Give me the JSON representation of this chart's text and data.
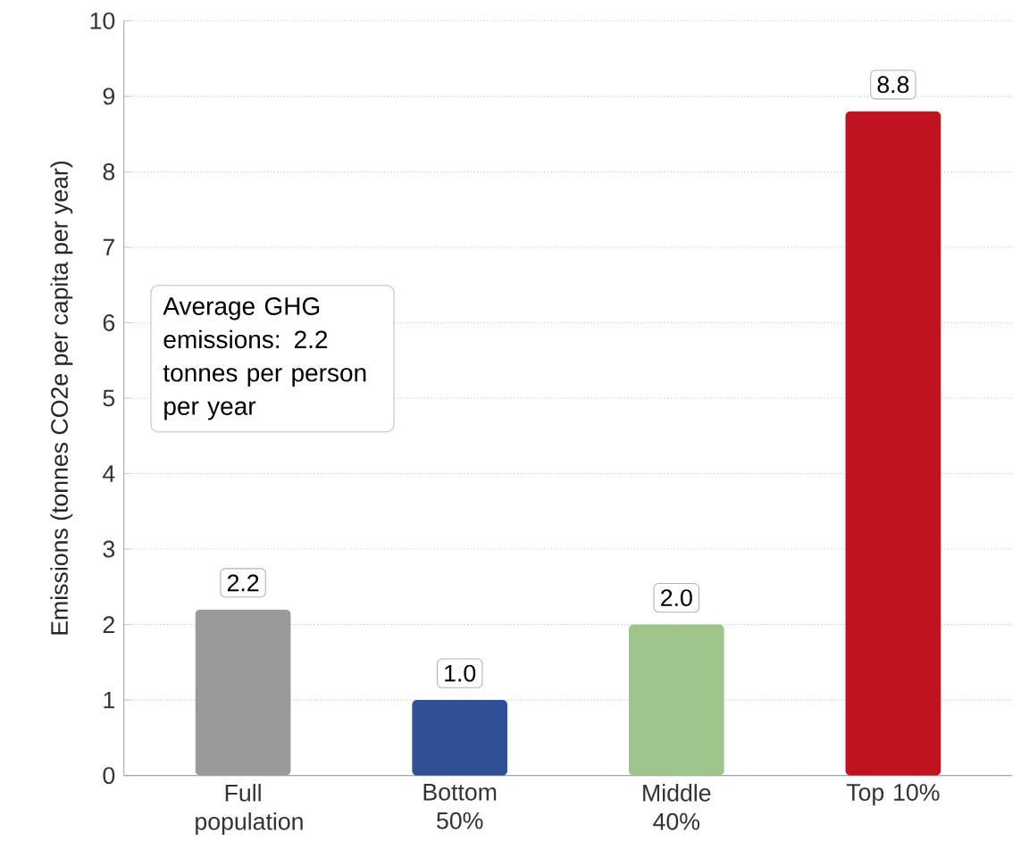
{
  "chart_data": {
    "type": "bar",
    "ylabel": "Emissions (tonnes CO2e per capita per year)",
    "categories": [
      "Full population",
      "Bottom 50%",
      "Middle 40%",
      "Top 10%"
    ],
    "values": [
      2.2,
      1.0,
      2.0,
      8.8
    ],
    "value_labels": [
      "2.2",
      "1.0",
      "2.0",
      "8.8"
    ],
    "colors": [
      "#9a9a9a",
      "#2f4f96",
      "#9fc48c",
      "#c1121f"
    ],
    "ylim": [
      0,
      10
    ],
    "yticks": [
      0,
      1,
      2,
      3,
      4,
      5,
      6,
      7,
      8,
      9,
      10
    ],
    "grid": "y",
    "annotations": [
      "Average GHG emissions: 2.2 tonnes per person per year"
    ]
  }
}
